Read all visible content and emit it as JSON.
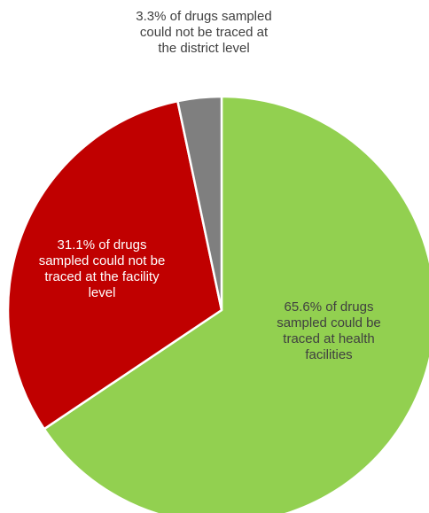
{
  "chart_data": {
    "type": "pie",
    "title": "",
    "start_angle_deg": 0,
    "direction": "clockwise",
    "slices": [
      {
        "label": "65.6% of drugs sampled could be traced at health facilities",
        "value": 65.6,
        "color": "#92d050"
      },
      {
        "label": "31.1% of drugs sampled could not be traced at the facility level",
        "value": 31.1,
        "color": "#c00000"
      },
      {
        "label": "3.3% of drugs sampled could not be traced at the district level",
        "value": 3.3,
        "color": "#7f7f7f"
      }
    ],
    "slice_border_color": "#ffffff",
    "legend": "none"
  }
}
